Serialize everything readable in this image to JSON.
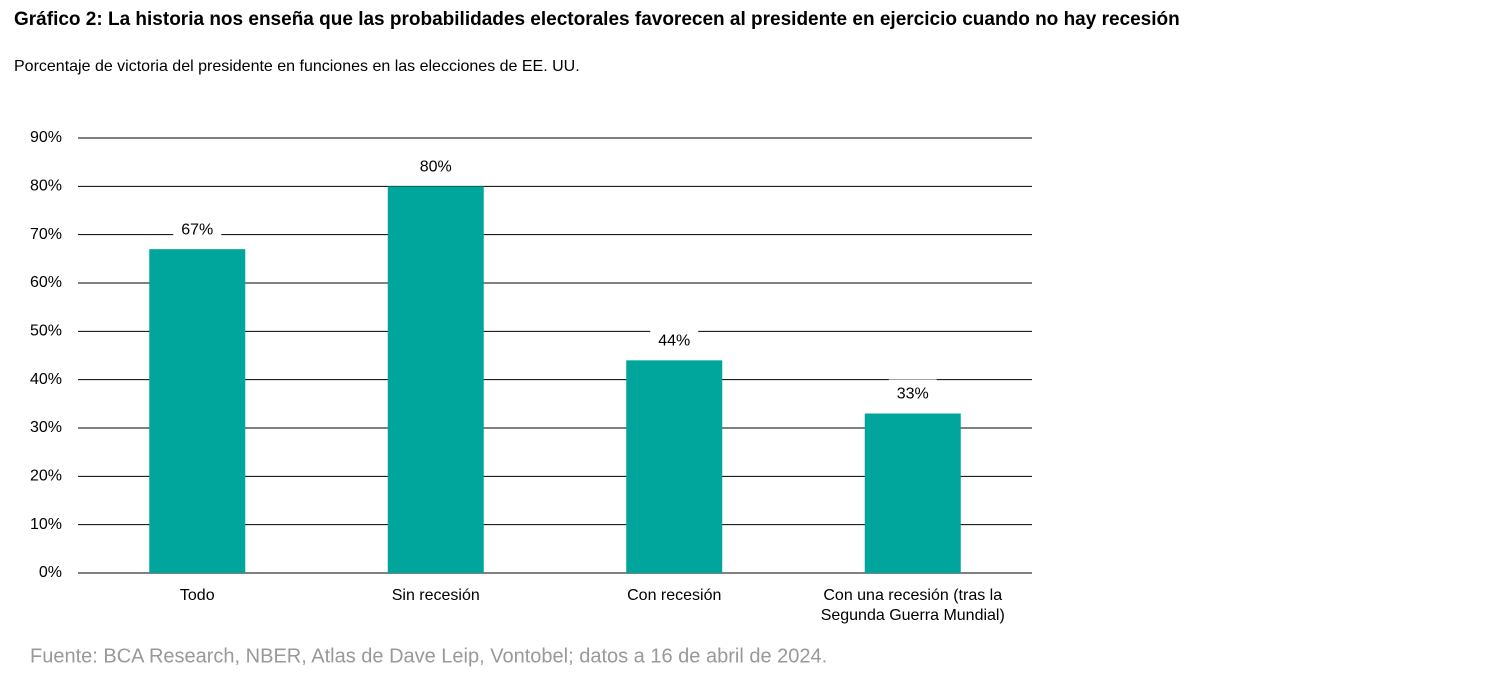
{
  "chart_data": {
    "type": "bar",
    "title": "Gráfico 2: La historia nos enseña que las probabilidades electorales favorecen al presidente en ejercicio cuando no hay recesión",
    "subtitle": "Porcentaje de victoria del presidente en funciones en las elecciones de EE. UU.",
    "source": "Fuente: BCA Research, NBER, Atlas de Dave Leip, Vontobel; datos a 16 de abril de 2024.",
    "categories": [
      "Todo",
      "Sin recesión",
      "Con recesión",
      "Con una recesión (tras la Segunda Guerra Mundial)"
    ],
    "values": [
      67,
      80,
      44,
      33
    ],
    "value_labels": [
      "67%",
      "80%",
      "44%",
      "33%"
    ],
    "color": "#00a59b",
    "ylim": [
      0,
      90
    ],
    "yticks": [
      {
        "value": 0,
        "label": "0%"
      },
      {
        "value": 10,
        "label": "10%"
      },
      {
        "value": 20,
        "label": "20%"
      },
      {
        "value": 30,
        "label": "30%"
      },
      {
        "value": 40,
        "label": "40%"
      },
      {
        "value": 50,
        "label": "50%"
      },
      {
        "value": 60,
        "label": "60%"
      },
      {
        "value": 70,
        "label": "70%"
      },
      {
        "value": 80,
        "label": "80%"
      },
      {
        "value": 90,
        "label": "90%"
      }
    ],
    "grid": true
  }
}
